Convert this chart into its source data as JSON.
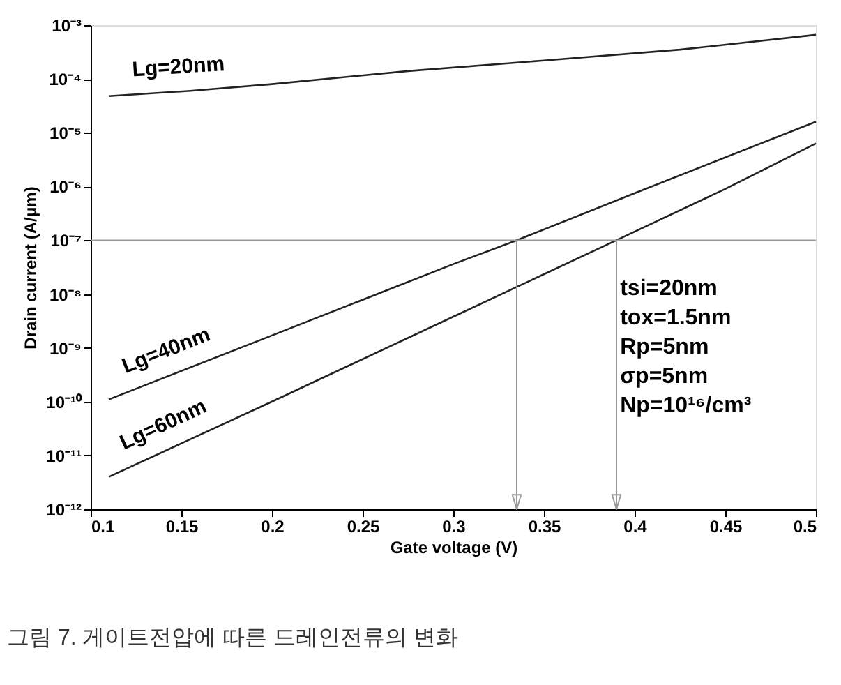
{
  "chart_data": {
    "type": "line",
    "xlabel": "Gate voltage (V)",
    "ylabel": "Drain current (A/μm)",
    "log": "y",
    "grid": false,
    "legend": false,
    "marker": "none",
    "line_style": "solid",
    "xlim": [
      0.1,
      0.5
    ],
    "xticks": [
      0.1,
      0.15,
      0.2,
      0.25,
      0.3,
      0.35,
      0.4,
      0.45,
      0.5
    ],
    "ylim": [
      1e-12,
      0.001
    ],
    "yticks": [
      {
        "value": 1e-12,
        "label": "10⁻¹²"
      },
      {
        "value": 1e-11,
        "label": "10⁻¹¹"
      },
      {
        "value": 1e-10,
        "label": "10⁻¹⁰"
      },
      {
        "value": 1e-09,
        "label": "10⁻⁹"
      },
      {
        "value": 1e-08,
        "label": "10⁻⁸"
      },
      {
        "value": 1e-07,
        "label": "10⁻⁷"
      },
      {
        "value": 1e-06,
        "label": "10⁻⁶"
      },
      {
        "value": 1e-05,
        "label": "10⁻⁵"
      },
      {
        "value": 0.0001,
        "label": "10⁻⁴"
      },
      {
        "value": 0.001,
        "label": "10⁻³"
      }
    ],
    "series": [
      {
        "name": "Lg=20nm",
        "color": "#222222",
        "x": [
          0.11,
          0.155,
          0.2,
          0.275,
          0.35,
          0.425,
          0.5
        ],
        "values": [
          4.8e-05,
          6e-05,
          8e-05,
          0.00014,
          0.00022,
          0.00035,
          0.00066
        ]
      },
      {
        "name": "Lg=40nm",
        "color": "#222222",
        "x": [
          0.11,
          0.2,
          0.3,
          0.335,
          0.4,
          0.5
        ],
        "values": [
          1.1e-10,
          1.7e-09,
          3.6e-08,
          1e-07,
          7.5e-07,
          1.6e-05
        ]
      },
      {
        "name": "Lg=60nm",
        "color": "#222222",
        "x": [
          0.11,
          0.2,
          0.3,
          0.39,
          0.45,
          0.5
        ],
        "values": [
          4e-12,
          1e-10,
          3.8e-09,
          1e-07,
          9e-07,
          6.3e-06
        ]
      }
    ],
    "ref_lines": [
      {
        "axis": "y",
        "value": 1e-07,
        "color": "#999999"
      },
      {
        "axis": "x",
        "value": 0.335,
        "color": "#999999"
      },
      {
        "axis": "x",
        "value": 0.39,
        "color": "#999999"
      }
    ],
    "annotations": [
      "tsi=20nm\ntox=1.5nm\nRp=5nm\nσp=5nm\nNp=10¹⁶/cm³",
      "그림 7. 게이트전압에 따른 드레인전류의 변화"
    ]
  }
}
